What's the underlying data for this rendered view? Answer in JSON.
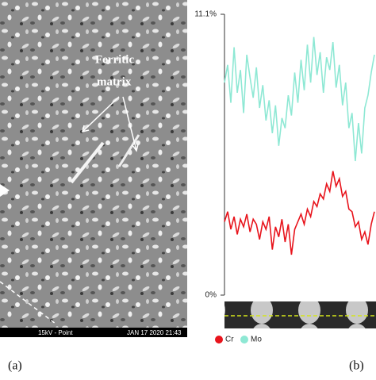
{
  "micrograph": {
    "label_line1": "Ferritic",
    "label_line2": "matrix",
    "beam": "15kV - Point",
    "timestamp": "JAN 17 2020 21:43",
    "panel": "(a)"
  },
  "chart_data": {
    "type": "line",
    "panel": "(b)",
    "x": [
      0,
      1,
      2,
      3,
      4,
      5,
      6,
      7,
      8,
      9,
      10,
      11,
      12,
      13,
      14,
      15,
      16,
      17,
      18,
      19,
      20,
      21,
      22,
      23,
      24,
      25,
      26,
      27,
      28,
      29,
      30,
      31,
      32,
      33,
      34,
      35,
      36,
      37,
      38,
      39,
      40,
      41,
      42,
      43,
      44,
      45,
      46,
      47
    ],
    "xlim": [
      0,
      47.5
    ],
    "ylim": [
      0,
      11.1
    ],
    "yticks": [
      {
        "value": 0,
        "label": "0%"
      },
      {
        "value": 11.1,
        "label": "11.1%"
      }
    ],
    "series": [
      {
        "name": "Cr",
        "color": "#e8141c",
        "values": [
          2.9,
          3.3,
          2.6,
          3.1,
          2.4,
          3.0,
          2.7,
          3.2,
          2.5,
          3.0,
          2.8,
          2.2,
          2.9,
          2.6,
          3.1,
          1.8,
          2.7,
          2.3,
          3.0,
          2.1,
          2.8,
          1.6,
          2.6,
          2.9,
          3.2,
          2.8,
          3.4,
          3.1,
          3.7,
          3.5,
          4.0,
          3.8,
          4.4,
          4.1,
          4.9,
          4.3,
          4.6,
          3.9,
          4.1,
          3.4,
          3.3,
          2.7,
          2.9,
          2.2,
          2.5,
          2.0,
          2.8,
          3.3
        ]
      },
      {
        "name": "Mo",
        "color": "#8ee8d4",
        "values": [
          8.4,
          9.1,
          7.6,
          9.8,
          8.0,
          8.9,
          7.2,
          9.5,
          8.6,
          7.8,
          9.0,
          7.4,
          8.3,
          6.9,
          7.7,
          6.4,
          7.5,
          5.9,
          7.0,
          6.6,
          7.9,
          7.1,
          8.8,
          7.6,
          9.3,
          8.1,
          9.9,
          8.4,
          10.2,
          8.7,
          9.6,
          8.0,
          9.4,
          8.9,
          10.0,
          8.2,
          9.1,
          7.5,
          8.4,
          6.6,
          7.2,
          5.3,
          6.8,
          5.6,
          7.4,
          7.9,
          8.8,
          9.5
        ]
      }
    ]
  }
}
